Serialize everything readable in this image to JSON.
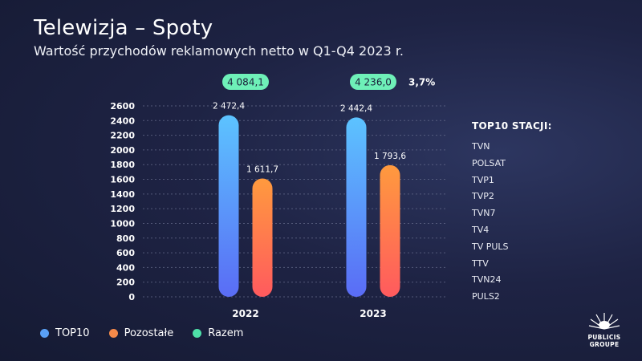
{
  "header": {
    "title": "Telewizja – Spoty",
    "subtitle": "Wartość przychodów reklamowych netto w Q1-Q4 2023 r."
  },
  "chart_data": {
    "type": "bar",
    "categories": [
      "2022",
      "2023"
    ],
    "series": [
      {
        "name": "TOP10",
        "values": [
          2472.4,
          2442.4
        ],
        "labels": [
          "2 472,4",
          "2 442,4"
        ]
      },
      {
        "name": "Pozostałe",
        "values": [
          1611.7,
          1793.6
        ],
        "labels": [
          "1 611,7",
          "1 793,6"
        ]
      }
    ],
    "totals": {
      "name": "Razem",
      "values": [
        4084.1,
        4236.0
      ],
      "labels": [
        "4 084,1",
        "4 236,0"
      ]
    },
    "change_label": "3,7%",
    "ylim": [
      0,
      2600
    ],
    "yticks": [
      0,
      200,
      400,
      600,
      800,
      1000,
      1200,
      1400,
      1600,
      1800,
      2000,
      2200,
      2400,
      2600
    ],
    "grid": true,
    "legend": "bottom-left"
  },
  "stations": {
    "title": "TOP10 STACJI:",
    "items": [
      "TVN",
      "POLSAT",
      "TVP1",
      "TVP2",
      "TVN7",
      "TV4",
      "TV PULS",
      "TTV",
      "TVN24",
      "PULS2"
    ]
  },
  "legend": {
    "items": [
      {
        "label": "TOP10",
        "color": "#5aa0f5"
      },
      {
        "label": "Pozostałe",
        "color": "#f58a4a"
      },
      {
        "label": "Razem",
        "color": "#4ee0a8"
      }
    ]
  },
  "logo": {
    "line1": "PUBLICIS",
    "line2": "GROUPE",
    "icon": "lion-icon"
  },
  "colors": {
    "top10_top": "#5cc3ff",
    "top10_bottom": "#5a6cf5",
    "rest_top": "#ff9a3e",
    "rest_bottom": "#ff5a5e",
    "total_pill": "#6ef0b8"
  }
}
